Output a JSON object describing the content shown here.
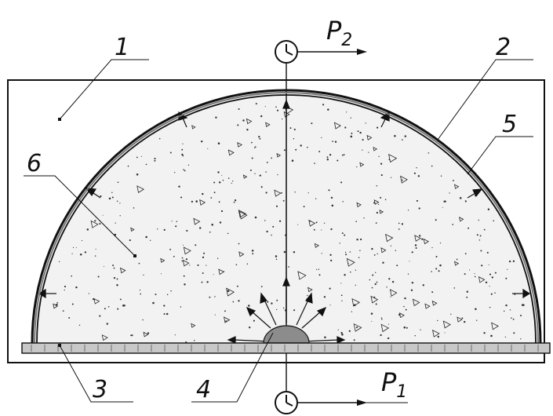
{
  "labels": {
    "one": "1",
    "two": "2",
    "three": "3",
    "four": "4",
    "five": "5",
    "six": "6",
    "p1": "P",
    "p1_sub": "1",
    "p2": "P",
    "p2_sub": "2"
  },
  "colors": {
    "ink": "#111111",
    "fill_medium": "#f2f2f2",
    "source": "#8c8c8c",
    "base_plate": "#c8c8c8"
  },
  "icons": {
    "gauge_top": "clock-gauge-icon",
    "gauge_bottom": "clock-gauge-icon"
  }
}
